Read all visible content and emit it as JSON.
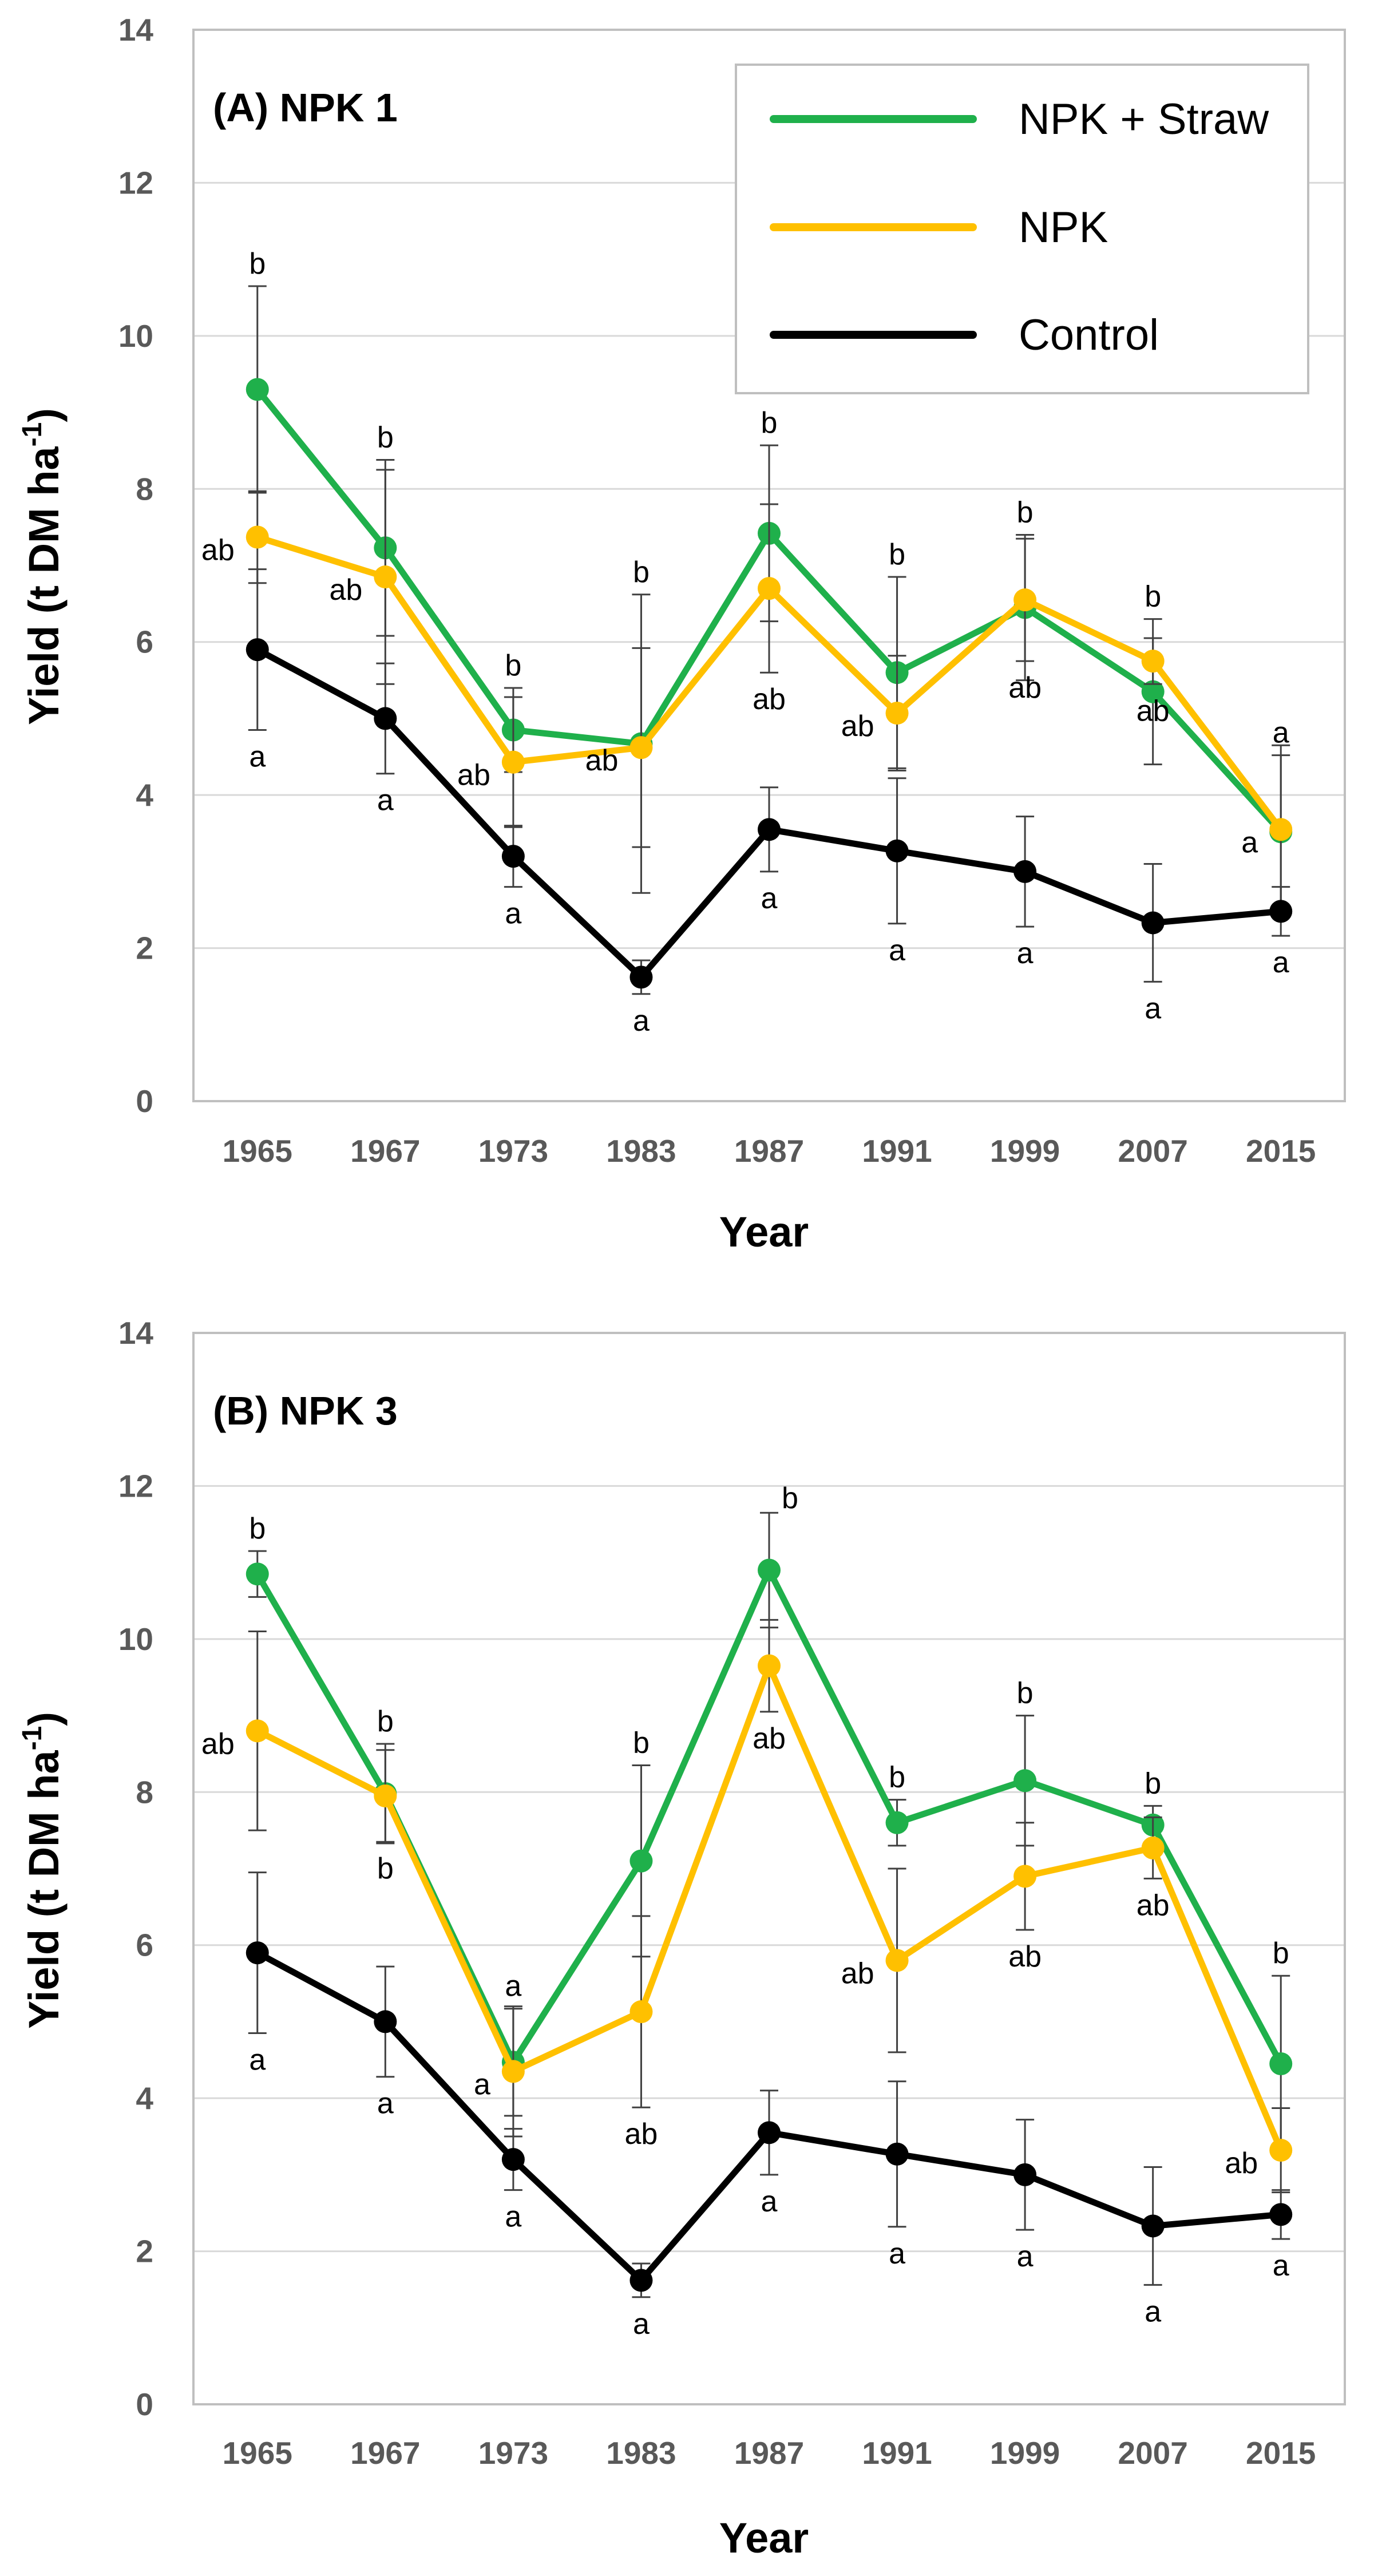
{
  "chart_data": [
    {
      "type": "line",
      "title": "(A) NPK 1",
      "xlabel": "Year",
      "ylabel": "Yield (t DM ha",
      "ylabel_sup": "-1",
      "ylabel_close": ")",
      "categories": [
        "1965",
        "1967",
        "1973",
        "1983",
        "1987",
        "1991",
        "1999",
        "2007",
        "2015"
      ],
      "ylim": [
        0,
        14
      ],
      "yticks": [
        "0",
        "2",
        "4",
        "6",
        "8",
        "10",
        "12",
        "14"
      ],
      "grid": true,
      "legend_position": "top-right",
      "series": [
        {
          "name": "NPK + Straw",
          "color": "#1fb04b",
          "values": [
            9.3,
            7.23,
            4.85,
            4.67,
            7.42,
            5.6,
            6.45,
            5.35,
            3.52
          ],
          "err": [
            1.35,
            1.15,
            0.55,
            1.95,
            1.15,
            1.25,
            0.95,
            0.95,
            1.0
          ],
          "labels": [
            "b",
            "b",
            "b",
            "b",
            "b",
            "b",
            "b",
            "b",
            "a"
          ]
        },
        {
          "name": "NPK",
          "color": "#ffc000",
          "values": [
            7.37,
            6.85,
            4.43,
            4.62,
            6.7,
            5.07,
            6.55,
            5.75,
            3.55
          ],
          "err": [
            0.6,
            1.4,
            0.85,
            1.3,
            1.1,
            0.75,
            0.8,
            0.3,
            1.1
          ],
          "labels": [
            "ab",
            "ab",
            "ab",
            "ab",
            "ab",
            "ab",
            "ab",
            "ab",
            "a"
          ]
        },
        {
          "name": "Control",
          "color": "#000000",
          "values": [
            5.9,
            5.0,
            3.2,
            1.62,
            3.55,
            3.27,
            3.0,
            2.33,
            2.48
          ],
          "err": [
            1.05,
            0.72,
            0.4,
            0.22,
            0.55,
            0.95,
            0.72,
            0.77,
            0.32
          ],
          "labels": [
            "a",
            "a",
            "a",
            "a",
            "a",
            "a",
            "a",
            "a",
            "a"
          ]
        }
      ]
    },
    {
      "type": "line",
      "title": "(B) NPK 3",
      "xlabel": "Year",
      "ylabel": "Yield (t DM ha",
      "ylabel_sup": "-1",
      "ylabel_close": ")",
      "categories": [
        "1965",
        "1967",
        "1973",
        "1983",
        "1987",
        "1991",
        "1999",
        "2007",
        "2015"
      ],
      "ylim": [
        0,
        14
      ],
      "yticks": [
        "0",
        "2",
        "4",
        "6",
        "8",
        "10",
        "12",
        "14"
      ],
      "grid": true,
      "series": [
        {
          "name": "NPK + Straw",
          "color": "#1fb04b",
          "values": [
            10.85,
            7.98,
            4.47,
            7.1,
            10.9,
            7.6,
            8.15,
            7.57,
            4.45
          ],
          "err": [
            0.3,
            0.65,
            0.7,
            1.25,
            0.75,
            0.3,
            0.85,
            0.25,
            1.15
          ],
          "labels": [
            "b",
            "b",
            "a",
            "b",
            "b",
            "b",
            "b",
            "b",
            "b"
          ]
        },
        {
          "name": "NPK",
          "color": "#ffc000",
          "values": [
            8.8,
            7.95,
            4.35,
            5.13,
            9.65,
            5.8,
            6.9,
            7.27,
            3.32
          ],
          "err": [
            1.3,
            0.6,
            0.85,
            1.25,
            0.6,
            1.2,
            0.7,
            0.4,
            0.55
          ],
          "labels": [
            "ab",
            "b",
            "a",
            "ab",
            "ab",
            "ab",
            "ab",
            "ab",
            "ab"
          ]
        },
        {
          "name": "Control",
          "color": "#000000",
          "values": [
            5.9,
            5.0,
            3.2,
            1.62,
            3.55,
            3.27,
            3.0,
            2.33,
            2.48
          ],
          "err": [
            1.05,
            0.72,
            0.4,
            0.22,
            0.55,
            0.95,
            0.72,
            0.77,
            0.32
          ],
          "labels": [
            "a",
            "a",
            "a",
            "a",
            "a",
            "a",
            "a",
            "a",
            "a"
          ]
        }
      ]
    }
  ]
}
